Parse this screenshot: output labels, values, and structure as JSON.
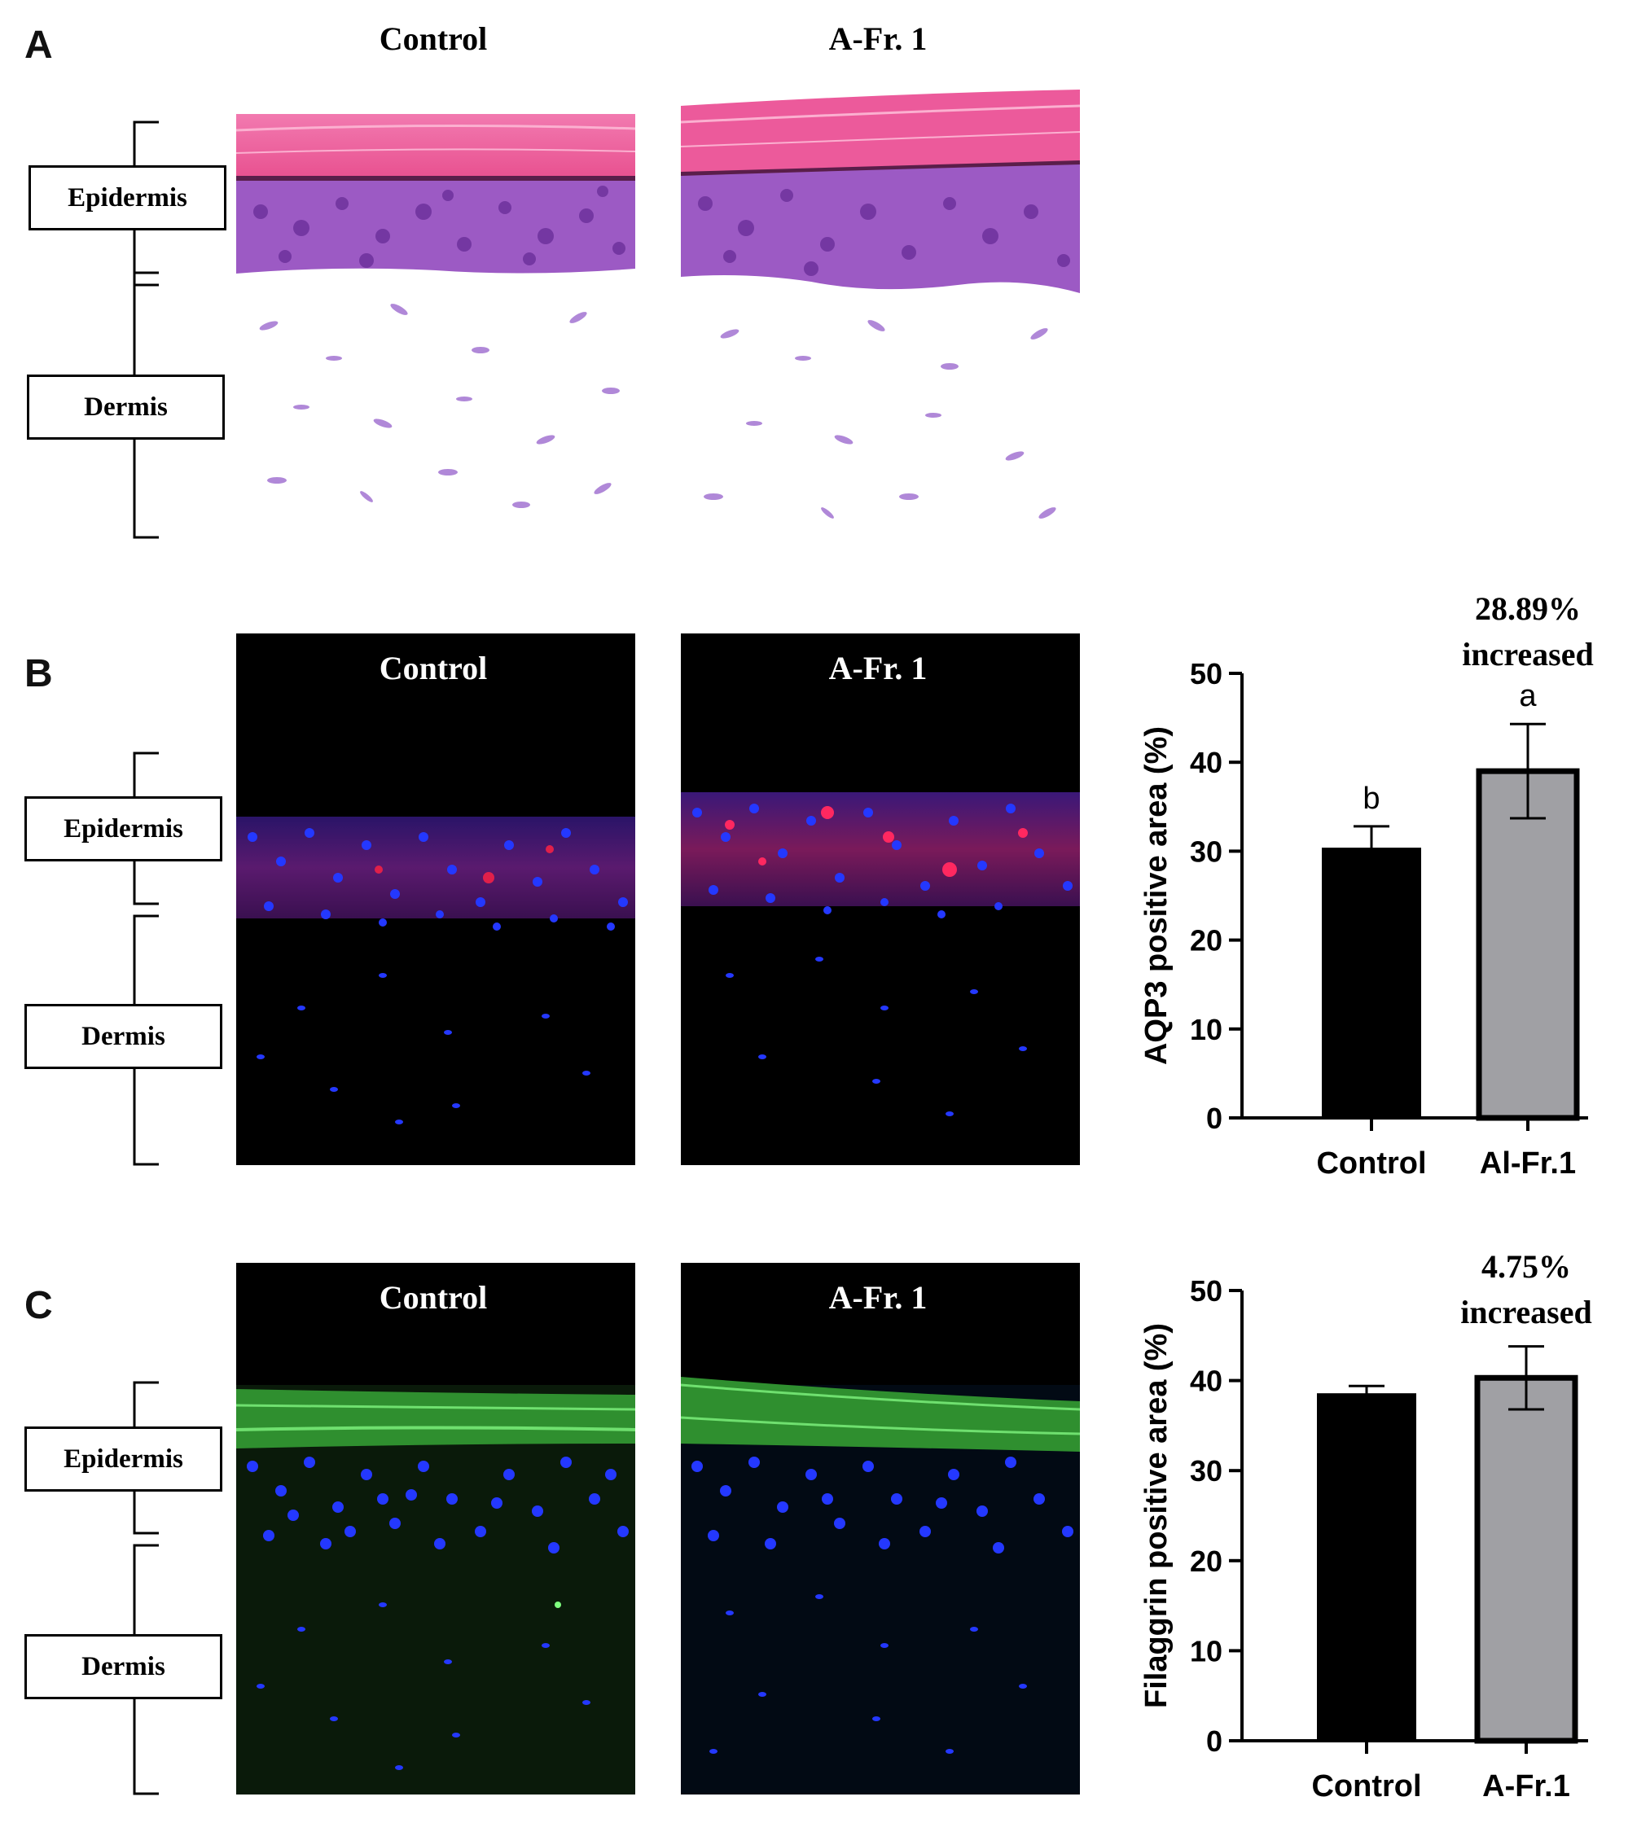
{
  "panels": {
    "A": {
      "letter": "A",
      "titles": [
        "Control",
        "A-Fr. 1"
      ],
      "labels": [
        "Epidermis",
        "Dermis"
      ]
    },
    "B": {
      "letter": "B",
      "titles": [
        "Control",
        "A-Fr. 1"
      ],
      "labels": [
        "Epidermis",
        "Dermis"
      ]
    },
    "C": {
      "letter": "C",
      "titles": [
        "Control",
        "A-Fr. 1"
      ],
      "labels": [
        "Epidermis",
        "Dermis"
      ]
    }
  },
  "colors": {
    "he_pink": "#f06aa8",
    "he_purple": "#8a4fc0",
    "nuclei_blue": "#1f2be0",
    "aqp3_red": "#c01838",
    "filaggrin_green": "#3fc23f",
    "bar_control": "#000000",
    "bar_treated": "#a0a0a4"
  },
  "chart_data": [
    {
      "type": "bar",
      "ylabel": "AQP3 positive area (%)",
      "categories": [
        "Control",
        "Al-Fr.1"
      ],
      "values": [
        30.3,
        39.0
      ],
      "errors": [
        2.5,
        5.3
      ],
      "significance": [
        "b",
        "a"
      ],
      "annotation": [
        "28.89%",
        "increased"
      ],
      "ylim": [
        0,
        50
      ],
      "yticks": [
        0,
        10,
        20,
        30,
        40,
        50
      ]
    },
    {
      "type": "bar",
      "ylabel": "Filaggrin positive area (%)",
      "categories": [
        "Control",
        "A-Fr.1"
      ],
      "values": [
        38.5,
        40.3
      ],
      "errors": [
        0.9,
        3.5
      ],
      "annotation": [
        "4.75%",
        "increased"
      ],
      "ylim": [
        0,
        50
      ],
      "yticks": [
        0,
        10,
        20,
        30,
        40,
        50
      ]
    }
  ]
}
